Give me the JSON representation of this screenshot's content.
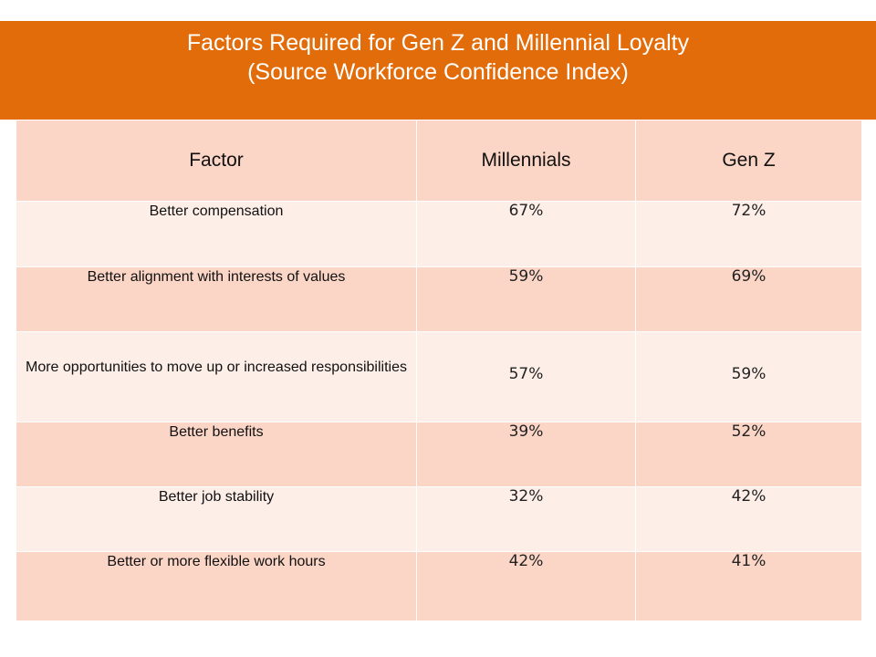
{
  "slide": {
    "title_line1": "Factors Required for Gen Z and Millennial Loyalty",
    "title_line2": "(Source Workforce Confidence Index)"
  },
  "colors": {
    "title_band": "#e36c0a",
    "header_row": "#fbd5c6",
    "row_light": "#fdeee8",
    "row_dark": "#fbd5c6"
  },
  "table": {
    "headers": [
      "Factor",
      "Millennials",
      "Gen Z"
    ],
    "rows": [
      {
        "factor": "Better compensation",
        "millennials": "67%",
        "genz": "72%"
      },
      {
        "factor": "Better alignment with interests of values",
        "millennials": "59%",
        "genz": "69%"
      },
      {
        "factor": "More opportunities to move up or  increased responsibilities",
        "millennials": "57%",
        "genz": "59%"
      },
      {
        "factor": "Better benefits",
        "millennials": "39%",
        "genz": "52%"
      },
      {
        "factor": "Better job stability",
        "millennials": "32%",
        "genz": "42%"
      },
      {
        "factor": "Better or more flexible work hours",
        "millennials": "42%",
        "genz": "41%"
      }
    ]
  }
}
